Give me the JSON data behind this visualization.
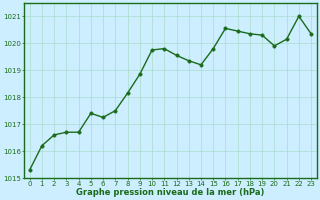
{
  "x": [
    0,
    1,
    2,
    3,
    4,
    5,
    6,
    7,
    8,
    9,
    10,
    11,
    12,
    13,
    14,
    15,
    16,
    17,
    18,
    19,
    20,
    21,
    22,
    23
  ],
  "y": [
    1015.3,
    1016.2,
    1016.6,
    1016.7,
    1016.7,
    1017.4,
    1017.25,
    1017.5,
    1018.15,
    1018.85,
    1019.75,
    1019.8,
    1019.55,
    1019.35,
    1019.2,
    1019.8,
    1020.55,
    1020.45,
    1020.35,
    1020.3,
    1019.9,
    1020.15,
    1021.0,
    1020.35
  ],
  "line_color": "#1a6b1a",
  "marker_color": "#1a6b1a",
  "bg_color": "#cceeff",
  "grid_color": "#aaddcc",
  "xlabel": "Graphe pression niveau de la mer (hPa)",
  "xlabel_color": "#1a6b1a",
  "tick_color": "#1a6b1a",
  "spine_color": "#1a6b1a",
  "ylim": [
    1015,
    1021.5
  ],
  "yticks": [
    1015,
    1016,
    1017,
    1018,
    1019,
    1020,
    1021
  ],
  "xlim": [
    -0.5,
    23.5
  ],
  "line_width": 1.0,
  "marker_size": 2.5,
  "tick_fontsize": 5.0,
  "xlabel_fontsize": 6.0
}
